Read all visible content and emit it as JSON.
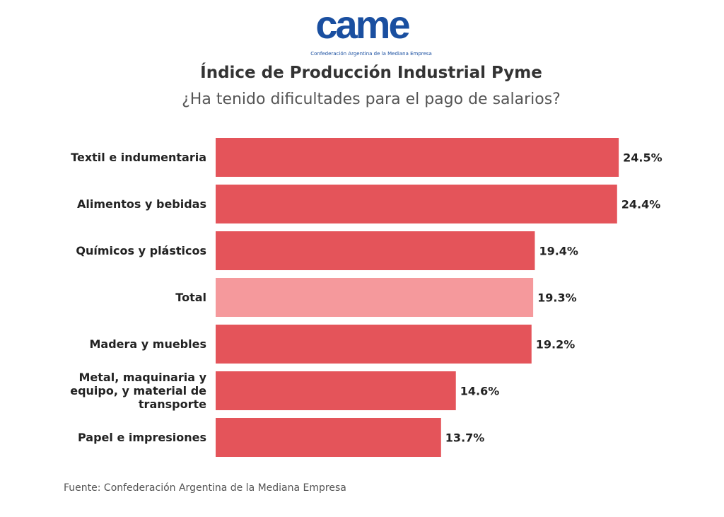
{
  "chart_data": {
    "type": "bar",
    "orientation": "horizontal",
    "logo": "came",
    "logo_caption": "Confederación Argentina de la Mediana Empresa",
    "title": "Índice de Producción Industrial Pyme",
    "subtitle": "¿Ha tenido dificultades para el pago de salarios?",
    "categories": [
      "Textil e indumentaria",
      "Alimentos y bebidas",
      "Químicos y plásticos",
      "Total",
      "Madera y muebles",
      "Metal, maquinaria y equipo, y material de transporte",
      "Papel e impresiones"
    ],
    "values": [
      24.5,
      24.4,
      19.4,
      19.3,
      19.2,
      14.6,
      13.7
    ],
    "value_labels": [
      "24.5%",
      "24.4%",
      "19.4%",
      "19.3%",
      "19.2%",
      "14.6%",
      "13.7%"
    ],
    "colors": [
      "#e4545a",
      "#e4545a",
      "#e4545a",
      "#f5999c",
      "#e4545a",
      "#e4545a",
      "#e4545a"
    ],
    "source": "Fuente: Confederación Argentina de la Mediana Empresa"
  }
}
